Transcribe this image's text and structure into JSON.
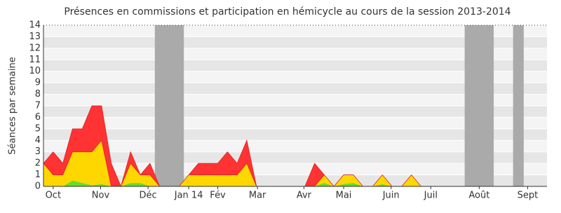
{
  "chart_data": {
    "type": "stacked_area",
    "title": "Présences en commissions et participation en hémicycle au cours de la session 2013-2014",
    "y_label": "Séances par semaine",
    "x": [
      0,
      1,
      2,
      3,
      4,
      5,
      6,
      7,
      8,
      9,
      10,
      11,
      12,
      13,
      14,
      15,
      16,
      17,
      18,
      19,
      20,
      21,
      22,
      23,
      24,
      25,
      26,
      27,
      28,
      29,
      30,
      31,
      32,
      33,
      34,
      35,
      36,
      37,
      38,
      39,
      40,
      41,
      42,
      43,
      44,
      45,
      46,
      47,
      48,
      49,
      50,
      51,
      52
    ],
    "xlim": [
      0,
      52
    ],
    "xticks": [
      {
        "value": 1,
        "label": "Oct"
      },
      {
        "value": 5.9,
        "label": "Nov"
      },
      {
        "value": 10.8,
        "label": "Déc"
      },
      {
        "value": 15,
        "label": "Jan 14"
      },
      {
        "value": 18,
        "label": "Fév"
      },
      {
        "value": 22.1,
        "label": "Mar"
      },
      {
        "value": 26.9,
        "label": "Avr"
      },
      {
        "value": 31,
        "label": "Mai"
      },
      {
        "value": 35.9,
        "label": "Juin"
      },
      {
        "value": 40,
        "label": "Juil"
      },
      {
        "value": 45,
        "label": "Août"
      },
      {
        "value": 50,
        "label": "Sept"
      }
    ],
    "ylim": [
      0,
      14
    ],
    "yticks": [
      0,
      1,
      2,
      3,
      4,
      5,
      6,
      7,
      8,
      9,
      10,
      11,
      12,
      13,
      14
    ],
    "grid": true,
    "shaded": [
      [
        11.5,
        14.5
      ],
      [
        43.5,
        46.5
      ],
      [
        48.5,
        49.6
      ]
    ],
    "shaded_color": "#aaaaaa",
    "series": [
      {
        "color": "#66dd22",
        "values": [
          0,
          0,
          0,
          0.5,
          0.3,
          0.1,
          0.2,
          0,
          0,
          0.3,
          0.3,
          0,
          0,
          0,
          0,
          0,
          0,
          0,
          0,
          0,
          0,
          0,
          0,
          0,
          0,
          0,
          0,
          0,
          0,
          0.3,
          0,
          0.2,
          0.3,
          0,
          0,
          0.2,
          0,
          0,
          0,
          0,
          0,
          0,
          0,
          0,
          0,
          0,
          0,
          0,
          0,
          0,
          0,
          0,
          0
        ]
      },
      {
        "color": "#ffd700",
        "values": [
          2,
          1,
          1,
          2.5,
          2.7,
          2.9,
          3.8,
          0,
          0,
          1.7,
          0.7,
          1,
          0,
          0,
          0,
          1,
          1,
          1,
          1,
          1,
          1,
          2,
          0,
          0,
          0,
          0,
          0,
          0,
          0,
          0.7,
          0,
          0.8,
          0.7,
          0,
          0,
          0.8,
          0,
          0,
          1,
          0,
          0,
          0,
          0,
          0,
          0,
          0,
          0,
          0,
          0,
          0,
          0,
          0,
          0
        ]
      },
      {
        "color": "#ff3333",
        "values": [
          0,
          2,
          1,
          2,
          2,
          4,
          3,
          2,
          0,
          1,
          0,
          1,
          0,
          0,
          0,
          0,
          1,
          1,
          1,
          2,
          1,
          2,
          0,
          0,
          0,
          0,
          0,
          0,
          2,
          0,
          0,
          0,
          0,
          0,
          0,
          0,
          0,
          0,
          0,
          0,
          0,
          0,
          0,
          0,
          0,
          0,
          0,
          0,
          0,
          0,
          0,
          0,
          0
        ]
      }
    ]
  }
}
